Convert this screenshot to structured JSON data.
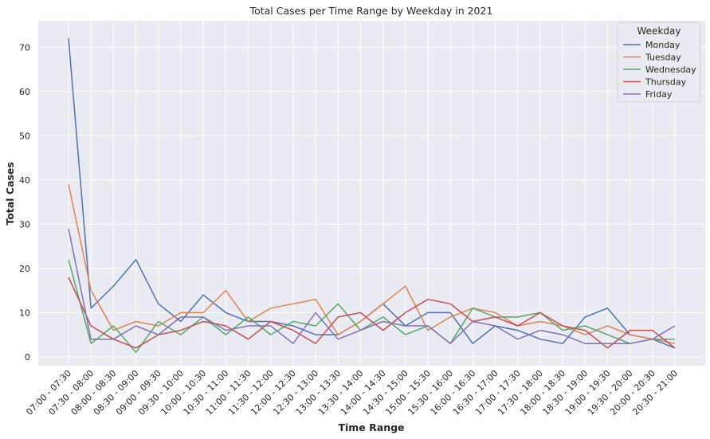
{
  "chart_data": {
    "type": "line",
    "title": "Total Cases per Time Range by Weekday in 2021",
    "xlabel": "Time Range",
    "ylabel": "Total Cases",
    "ylim": [
      -2,
      76
    ],
    "yticks": [
      0,
      10,
      20,
      30,
      40,
      50,
      60,
      70
    ],
    "grid": true,
    "legend_title": "Weekday",
    "legend_position": "top-right",
    "categories": [
      "07:00 - 07:30",
      "07:30 - 08:00",
      "08:00 - 08:30",
      "08:30 - 09:00",
      "09:00 - 09:30",
      "09:30 - 10:00",
      "10:00 - 10:30",
      "10:30 - 11:00",
      "11:00 - 11:30",
      "11:30 - 12:00",
      "12:00 - 12:30",
      "12:30 - 13:00",
      "13:00 - 13:30",
      "13:30 - 14:00",
      "14:00 - 14:30",
      "14:30 - 15:00",
      "15:00 - 15:30",
      "15:30 - 16:00",
      "16:00 - 16:30",
      "16:30 - 17:00",
      "17:00 - 17:30",
      "17:30 - 18:00",
      "18:00 - 18:30",
      "18:30 - 19:00",
      "19:00 - 19:30",
      "19:30 - 20:00",
      "20:00 - 20:30",
      "20:30 - 21:00"
    ],
    "series": [
      {
        "name": "Monday",
        "color": "#4c72b0",
        "values": [
          72,
          11,
          16,
          22,
          12,
          8,
          14,
          10,
          8,
          8,
          7,
          5,
          5,
          8,
          12,
          7,
          10,
          10,
          3,
          7,
          6,
          4,
          3,
          9,
          11,
          5,
          4,
          2
        ]
      },
      {
        "name": "Tuesday",
        "color": "#dd8452",
        "values": [
          39,
          15,
          6,
          8,
          7,
          10,
          10,
          15,
          8,
          11,
          12,
          13,
          5,
          8,
          12,
          16,
          6,
          9,
          11,
          10,
          7,
          8,
          7,
          5,
          7,
          5,
          4,
          3
        ]
      },
      {
        "name": "Wednesday",
        "color": "#55a868",
        "values": [
          22,
          3,
          7,
          1,
          8,
          5,
          9,
          5,
          9,
          5,
          8,
          7,
          12,
          6,
          9,
          5,
          7,
          3,
          11,
          9,
          9,
          10,
          6,
          7,
          5,
          3,
          4,
          4
        ]
      },
      {
        "name": "Thursday",
        "color": "#c44e52",
        "values": [
          18,
          7,
          4,
          2,
          5,
          6,
          8,
          7,
          4,
          8,
          6,
          3,
          9,
          10,
          6,
          10,
          13,
          12,
          8,
          9,
          7,
          10,
          7,
          6,
          2,
          6,
          6,
          2
        ]
      },
      {
        "name": "Friday",
        "color": "#8172b3",
        "values": [
          29,
          4,
          4,
          7,
          5,
          9,
          9,
          6,
          7,
          7,
          3,
          10,
          4,
          6,
          8,
          7,
          7,
          3,
          8,
          7,
          4,
          6,
          5,
          3,
          3,
          3,
          4,
          7
        ]
      }
    ]
  }
}
